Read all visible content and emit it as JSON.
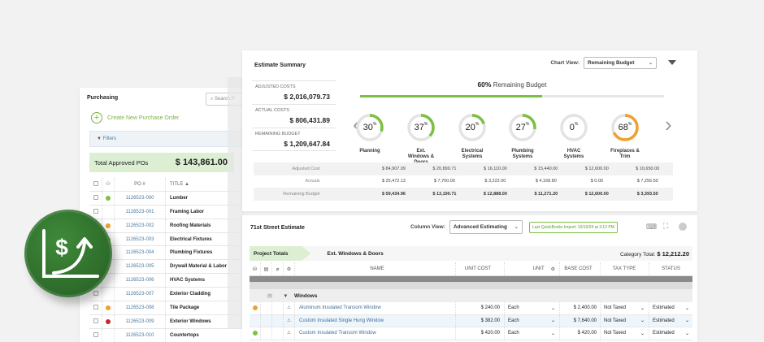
{
  "purchasing": {
    "title": "Purchasing",
    "search_placeholder": "Search P",
    "create_label": "Create New Purchase Order",
    "filters_label": "Filters",
    "total_label": "Total Approved POs",
    "total_value": "$ 143,861.00",
    "headers": {
      "po": "PO #",
      "title": "TITLE ▲"
    },
    "rows": [
      {
        "po": "1126523-000",
        "title": "Lumber",
        "dot": "#7cc043"
      },
      {
        "po": "1126523-001",
        "title": "Framing Labor",
        "dot": ""
      },
      {
        "po": "1126523-002",
        "title": "Roofing Materials",
        "dot": "#f0a030"
      },
      {
        "po": "1126523-003",
        "title": "Electrical Fixtures",
        "dot": "#7cc043"
      },
      {
        "po": "1126523-004",
        "title": "Plumbing Fixtures",
        "dot": ""
      },
      {
        "po": "1126523-005",
        "title": "Drywall Material & Labor",
        "dot": ""
      },
      {
        "po": "1126523-006",
        "title": "HVAC Systems",
        "dot": ""
      },
      {
        "po": "1126523-007",
        "title": "Exterior Cladding",
        "dot": ""
      },
      {
        "po": "1126523-008",
        "title": "Tile Package",
        "dot": "#f0a030"
      },
      {
        "po": "1126523-009",
        "title": "Exterior Windows",
        "dot": "#c62828"
      },
      {
        "po": "1126523-010",
        "title": "Countertops",
        "dot": ""
      }
    ]
  },
  "summary": {
    "title": "Estimate Summary",
    "chart_view_label": "Chart View:",
    "chart_view_value": "Remaining Budget",
    "kpis": [
      {
        "label": "ADJUSTED COSTS",
        "value": "$ 2,016,079.73"
      },
      {
        "label": "ACTUAL COSTS",
        "value": "$ 806,431.89"
      },
      {
        "label": "REMAINING BUDGET",
        "value": "$ 1,209,647.84"
      }
    ],
    "overall_pct": "60%",
    "overall_pct_value": 60,
    "overall_label": "Remaining Budget",
    "categories": [
      {
        "name": "Planning",
        "pct": 30,
        "pct_label": "30",
        "color": "#7cc043",
        "adjusted": "$ 84,907.09",
        "actuals": "$ 25,472.13",
        "remaining": "$ 59,434.96"
      },
      {
        "name": "Ext. Windows & Doors",
        "pct": 37,
        "pct_label": "37",
        "color": "#7cc043",
        "adjusted": "$ 20,890.71",
        "actuals": "$ 7,700.00",
        "remaining": "$ 13,190.71"
      },
      {
        "name": "Electrical Systems",
        "pct": 20,
        "pct_label": "20",
        "color": "#7cc043",
        "adjusted": "$ 16,110.00",
        "actuals": "$ 3,222.00",
        "remaining": "$ 12,888.00"
      },
      {
        "name": "Plumbing Systems",
        "pct": 27,
        "pct_label": "27",
        "color": "#7cc043",
        "adjusted": "$ 15,440.00",
        "actuals": "$ 4,168.80",
        "remaining": "$ 11,271.20"
      },
      {
        "name": "HVAC Systems",
        "pct": 0,
        "pct_label": "0",
        "color": "#7cc043",
        "adjusted": "$ 12,600.00",
        "actuals": "$ 0.00",
        "remaining": "$ 12,600.00"
      },
      {
        "name": "Fireplaces & Trim",
        "pct": 68,
        "pct_label": "68",
        "color": "#f0a030",
        "adjusted": "$ 10,650.00",
        "actuals": "$ 7,256.50",
        "remaining": "$ 3,393.50"
      }
    ],
    "pct_sign": "%",
    "row_labels": [
      "Adjusted Cost",
      "Actuals",
      "Remaining Budget"
    ]
  },
  "estimate": {
    "title": "71st Street Estimate",
    "column_view_label": "Column View:",
    "column_view_value": "Advanced Estimating",
    "qb_import": "Last QuickBooks Import: 10/10/24 at 3:12 PM",
    "tab_project_totals": "Project Totals",
    "tab_category": "Ext. Windows & Doors",
    "category_total_label": "Category Total:",
    "category_total_value": "$ 12,212.20",
    "headers": {
      "name": "NAME",
      "unit_cost": "UNIT COST",
      "unit": "UNIT",
      "base_cost": "BASE COST",
      "tax_type": "TAX TYPE",
      "status": "STATUS"
    },
    "group": "Windows",
    "rows": [
      {
        "name": "Aluminum Insulated Transom Window",
        "unit_cost": "$ 240.00",
        "unit": "Each",
        "base_cost": "$ 2,400.00",
        "tax": "Not Taxed",
        "status": "Estimated",
        "dot": "#f0a030"
      },
      {
        "name": "Custom Insulated Single Hung Window",
        "unit_cost": "$ 382.00",
        "unit": "Each",
        "base_cost": "$ 7,640.00",
        "tax": "Not Taxed",
        "status": "Estimated",
        "dot": ""
      },
      {
        "name": "Custom Insulated Transom Window",
        "unit_cost": "$ 420.00",
        "unit": "Each",
        "base_cost": "$ 420.00",
        "tax": "Not Taxed",
        "status": "Estimated",
        "dot": "#7cc043"
      }
    ]
  }
}
